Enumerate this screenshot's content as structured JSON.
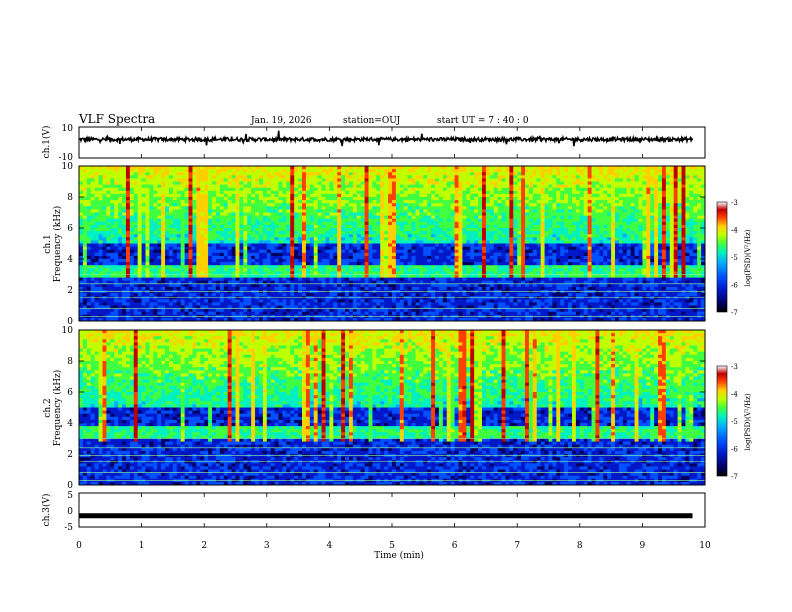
{
  "header": {
    "title": "VLF Spectra",
    "date": "Jan. 19, 2026",
    "station": "station=OUJ",
    "start": "start UT =  7 : 40 : 0"
  },
  "chart_data": [
    {
      "type": "line",
      "name": "ch1-waveform",
      "ylabel": "ch.1(V)",
      "ylim": [
        -10,
        10
      ],
      "y_ticklabels": [
        "10",
        "-10"
      ],
      "x_range_min": [
        0,
        9.8
      ],
      "description": "noisy waveform centred near +2 V"
    },
    {
      "type": "heatmap",
      "name": "ch1-spectrogram",
      "ylabel": "ch.1",
      "ylabel2": "Frequency (kHz)",
      "ylim": [
        0,
        10
      ],
      "y_ticklabels": [
        "0",
        "2",
        "4",
        "6",
        "8",
        "10"
      ],
      "colorbar": {
        "label": "log(PSD)(V²/Hz)",
        "range": [
          -7,
          -3
        ],
        "ticklabels": [
          "-3",
          "-4",
          "-5",
          "-6",
          "-7"
        ]
      }
    },
    {
      "type": "heatmap",
      "name": "ch2-spectrogram",
      "ylabel": "ch.2",
      "ylabel2": "Frequency (kHz)",
      "ylim": [
        0,
        10
      ],
      "y_ticklabels": [
        "0",
        "2",
        "4",
        "6",
        "8",
        "10"
      ],
      "colorbar": {
        "label": "log(PSD)(V²/Hz)",
        "range": [
          -7,
          -3
        ],
        "ticklabels": [
          "-3",
          "-4",
          "-5",
          "-6",
          "-7"
        ]
      }
    },
    {
      "type": "line",
      "name": "ch3-waveform",
      "ylabel": "ch.3(V)",
      "ylim": [
        -5,
        5
      ],
      "y_ticklabels": [
        "5",
        "0",
        "-5"
      ],
      "constant_value": -1.7
    }
  ],
  "x_axis": {
    "label": "Time (min)",
    "range": [
      0,
      10
    ],
    "ticklabels": [
      "0",
      "1",
      "2",
      "3",
      "4",
      "5",
      "6",
      "7",
      "8",
      "9",
      "10"
    ]
  },
  "colors": {
    "scale": [
      "#000000",
      "#000060",
      "#0018c8",
      "#0050ff",
      "#00a8ff",
      "#00f0c0",
      "#40ff40",
      "#c0ff00",
      "#ffd000",
      "#ff4000",
      "#c00000",
      "#ffffff"
    ]
  }
}
